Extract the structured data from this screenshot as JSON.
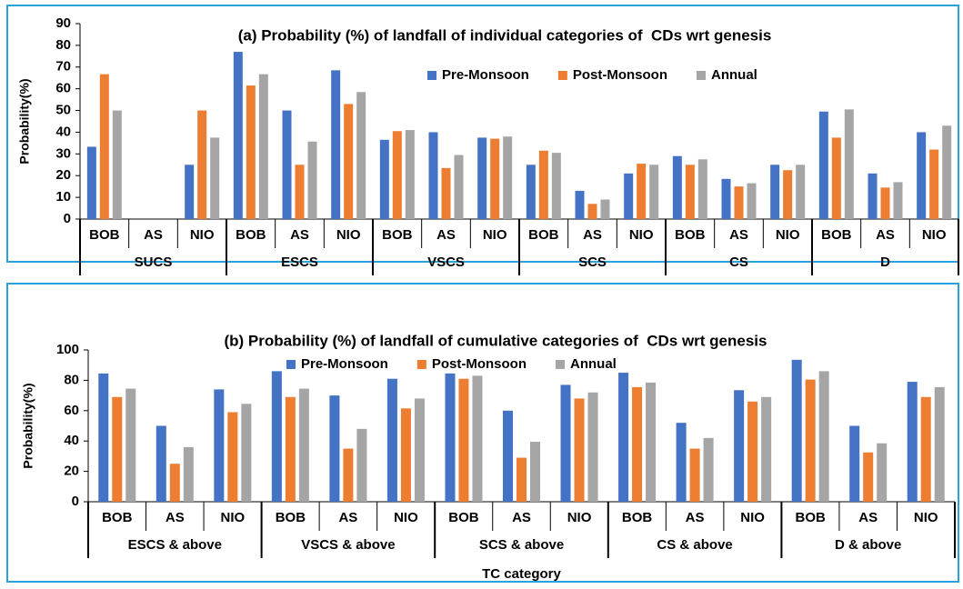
{
  "chart_data": [
    {
      "type": "bar",
      "title": "(a) Probability (%) of landfall of individual categories of  CDs wrt genesis",
      "ylabel": "Probability(%)",
      "categories": [
        "BOB",
        "AS",
        "NIO",
        "BOB",
        "AS",
        "NIO",
        "BOB",
        "AS",
        "NIO",
        "BOB",
        "AS",
        "NIO",
        "BOB",
        "AS",
        "NIO",
        "BOB",
        "AS",
        "NIO"
      ],
      "groups": [
        "SUCS",
        "ESCS",
        "VSCS",
        "SCS",
        "CS",
        "D"
      ],
      "series": [
        {
          "name": "Pre-Monsoon",
          "color": "#4472c4",
          "values": [
            33.3,
            0,
            25,
            77,
            50,
            68.5,
            36.5,
            40,
            37.5,
            25,
            13,
            21,
            29,
            18.5,
            25,
            49.5,
            21,
            40
          ]
        },
        {
          "name": "Post-Monsoon",
          "color": "#ed7d31",
          "values": [
            66.7,
            0,
            50,
            61.5,
            25,
            53,
            40.5,
            23.5,
            37,
            31.5,
            7,
            25.5,
            25,
            15,
            22.5,
            37.5,
            14.5,
            32
          ]
        },
        {
          "name": "Annual",
          "color": "#a5a5a5",
          "values": [
            50,
            0,
            37.5,
            66.7,
            35.7,
            58.5,
            41,
            29.5,
            38,
            30.5,
            9,
            25,
            27.5,
            16.5,
            25,
            50.5,
            17,
            43
          ]
        }
      ],
      "ylim": [
        0,
        90
      ],
      "yticks": [
        0,
        10,
        20,
        30,
        40,
        50,
        60,
        70,
        80,
        90
      ]
    },
    {
      "type": "bar",
      "title": "(b) Probability (%) of landfall of cumulative categories of  CDs wrt genesis",
      "ylabel": "Probability(%)",
      "xlabel": "TC category",
      "categories": [
        "BOB",
        "AS",
        "NIO",
        "BOB",
        "AS",
        "NIO",
        "BOB",
        "AS",
        "NIO",
        "BOB",
        "AS",
        "NIO",
        "BOB",
        "AS",
        "NIO"
      ],
      "groups": [
        "ESCS & above",
        "VSCS & above",
        "SCS & above",
        "CS & above",
        "D & above"
      ],
      "series": [
        {
          "name": "Pre-Monsoon",
          "color": "#4472c4",
          "values": [
            84.5,
            50,
            74,
            86,
            70,
            81,
            84.5,
            60,
            77,
            85,
            52,
            73.5,
            93.5,
            50,
            79
          ]
        },
        {
          "name": "Post-Monsoon",
          "color": "#ed7d31",
          "values": [
            69,
            25,
            59,
            69,
            35,
            61.5,
            81,
            29,
            68,
            75.5,
            35,
            66,
            80.5,
            32.5,
            69
          ]
        },
        {
          "name": "Annual",
          "color": "#a5a5a5",
          "values": [
            74.5,
            36,
            64.5,
            74.5,
            48,
            68,
            83,
            39.5,
            72,
            78.5,
            42,
            69,
            86,
            38.5,
            75.5
          ]
        }
      ],
      "ylim": [
        0,
        100
      ],
      "yticks": [
        0,
        20,
        40,
        60,
        80,
        100
      ]
    }
  ]
}
